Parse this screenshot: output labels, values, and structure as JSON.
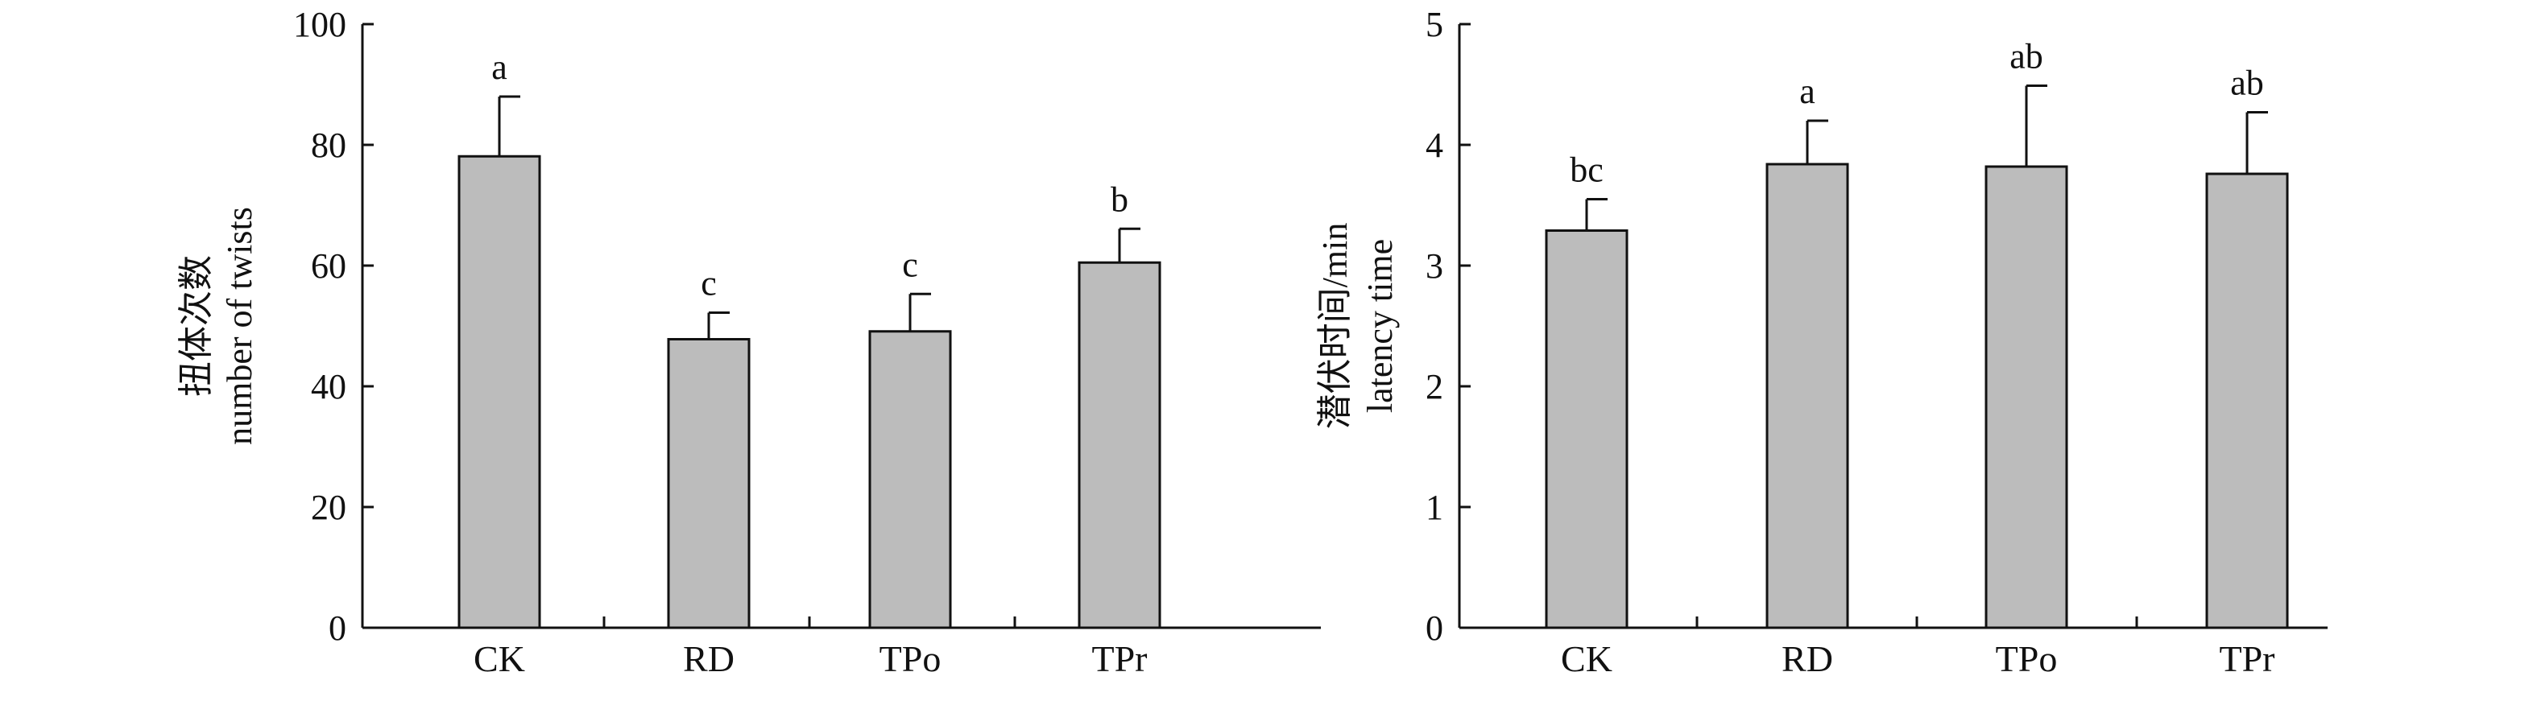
{
  "chart_data": [
    {
      "type": "bar",
      "ylabel_cn": "扭体次数",
      "ylabel": "number of twists",
      "categories": [
        "CK",
        "RD",
        "TPo",
        "TPr"
      ],
      "values": [
        78.1,
        47.8,
        49.1,
        60.5
      ],
      "error_upper": [
        88.0,
        52.2,
        55.3,
        66.1
      ],
      "significance": [
        "a",
        "c",
        "c",
        "b"
      ],
      "ylim": [
        0,
        100
      ],
      "yticks": [
        "0",
        "20",
        "40",
        "60",
        "80",
        "100"
      ],
      "grid": false,
      "bar_color": "#bcbcbc"
    },
    {
      "type": "bar",
      "ylabel_cn": "潜伏时间/min",
      "ylabel": "latency time",
      "categories": [
        "CK",
        "RD",
        "TPo",
        "TPr"
      ],
      "values": [
        3.29,
        3.84,
        3.82,
        3.76
      ],
      "error_upper": [
        3.55,
        4.2,
        4.49,
        4.27
      ],
      "significance": [
        "bc",
        "a",
        "ab",
        "ab"
      ],
      "ylim": [
        0,
        5
      ],
      "yticks": [
        "0",
        "1",
        "2",
        "3",
        "4",
        "5"
      ],
      "grid": false,
      "bar_color": "#bcbcbc"
    }
  ]
}
